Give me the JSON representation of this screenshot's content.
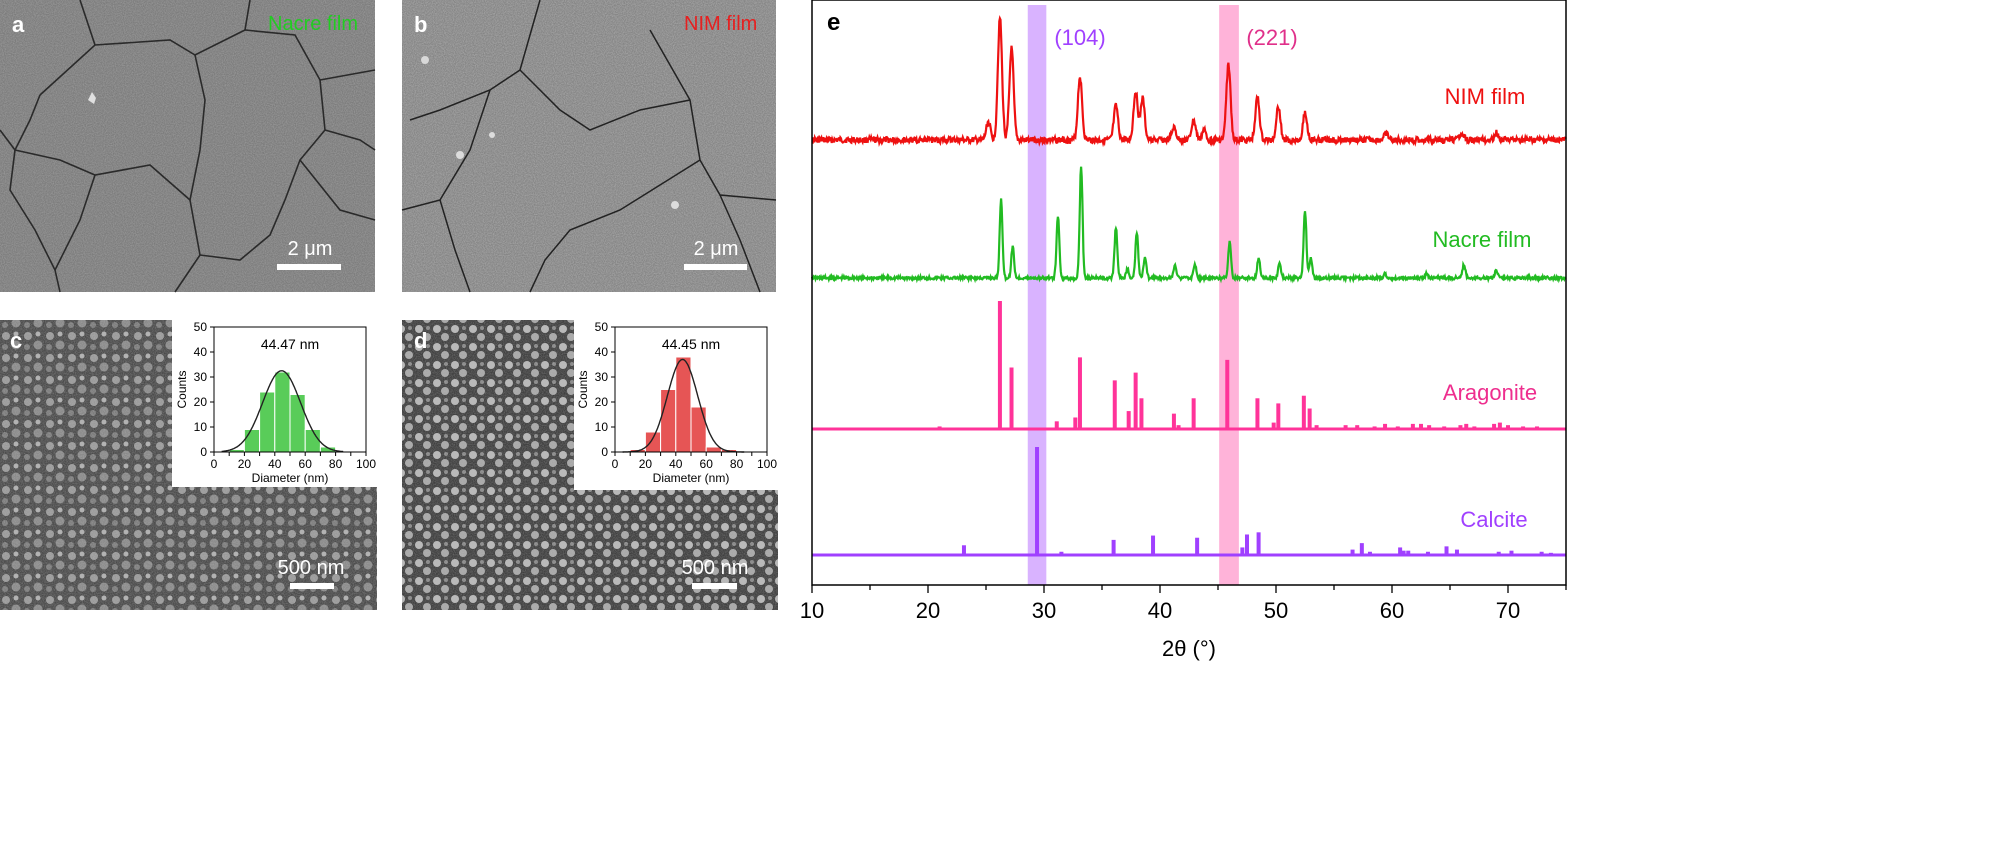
{
  "panels": {
    "a": {
      "letter": "a",
      "title": "Nacre film",
      "scale_label": "2 μm",
      "title_color": "#22cc22"
    },
    "b": {
      "letter": "b",
      "title": "NIM film",
      "scale_label": "2 μm",
      "title_color": "#e62020"
    },
    "c": {
      "letter": "c",
      "scale_label": "500 nm"
    },
    "d": {
      "letter": "d",
      "scale_label": "500 nm"
    },
    "e": {
      "letter": "e"
    }
  },
  "chart_data": [
    {
      "type": "bar",
      "panel": "c",
      "annotation": "44.47 nm",
      "xlabel": "Diameter (nm)",
      "ylabel": "Counts",
      "xlim": [
        0,
        100
      ],
      "ylim": [
        0,
        50
      ],
      "xticks": [
        0,
        10,
        20,
        30,
        40,
        50,
        60,
        70,
        80,
        90,
        100
      ],
      "yticks": [
        0,
        10,
        20,
        30,
        40,
        50
      ],
      "bins": [
        15,
        25,
        35,
        45,
        55,
        65,
        75
      ],
      "values": [
        1,
        9,
        24,
        32,
        23,
        9,
        2
      ],
      "bar_color": "#2fbf2f",
      "fit_curve": "gaussian",
      "fit_peak": 32.5,
      "fit_mean": 44.47,
      "fit_sd": 12.5
    },
    {
      "type": "bar",
      "panel": "d",
      "annotation": "44.45 nm",
      "xlabel": "Diameter (nm)",
      "ylabel": "Counts",
      "xlim": [
        0,
        100
      ],
      "ylim": [
        0,
        50
      ],
      "xticks": [
        0,
        10,
        20,
        30,
        40,
        50,
        60,
        70,
        80,
        90,
        100
      ],
      "yticks": [
        0,
        10,
        20,
        30,
        40,
        50
      ],
      "bins": [
        15,
        25,
        35,
        45,
        55,
        65,
        75
      ],
      "values": [
        1,
        8,
        25,
        38,
        18,
        2,
        1
      ],
      "bar_color": "#e02a2a",
      "fit_curve": "gaussian",
      "fit_peak": 37,
      "fit_mean": 44.45,
      "fit_sd": 10
    },
    {
      "type": "line",
      "panel": "e",
      "xlabel": "2θ (°)",
      "ylabel": "",
      "xlim": [
        10,
        75
      ],
      "xticks": [
        10,
        20,
        30,
        40,
        50,
        60,
        70
      ],
      "highlights": [
        {
          "label": "(104)",
          "from": 28.6,
          "to": 30.2,
          "color": "#cc99ff"
        },
        {
          "label": "(221)",
          "from": 45.1,
          "to": 46.8,
          "color": "#ff99cc"
        }
      ],
      "series": [
        {
          "name": "NIM film",
          "color": "#ee1111",
          "peaks": [
            [
              25.2,
              0.15
            ],
            [
              26.2,
              1.0
            ],
            [
              27.2,
              0.75
            ],
            [
              33.1,
              0.52
            ],
            [
              36.2,
              0.28
            ],
            [
              37.9,
              0.4
            ],
            [
              38.5,
              0.34
            ],
            [
              41.2,
              0.1
            ],
            [
              42.9,
              0.16
            ],
            [
              43.8,
              0.08
            ],
            [
              45.9,
              0.62
            ],
            [
              48.4,
              0.35
            ],
            [
              50.2,
              0.28
            ],
            [
              52.5,
              0.22
            ],
            [
              59.5,
              0.05
            ],
            [
              66.0,
              0.06
            ],
            [
              69.0,
              0.06
            ]
          ]
        },
        {
          "name": "Nacre film",
          "color": "#22bb22",
          "peaks": [
            [
              26.3,
              0.7
            ],
            [
              27.3,
              0.28
            ],
            [
              31.2,
              0.55
            ],
            [
              33.2,
              1.0
            ],
            [
              36.2,
              0.45
            ],
            [
              37.2,
              0.08
            ],
            [
              38.0,
              0.4
            ],
            [
              38.7,
              0.18
            ],
            [
              41.3,
              0.12
            ],
            [
              43.0,
              0.12
            ],
            [
              46.0,
              0.32
            ],
            [
              48.5,
              0.18
            ],
            [
              50.3,
              0.14
            ],
            [
              52.5,
              0.6
            ],
            [
              53.0,
              0.18
            ],
            [
              59.4,
              0.04
            ],
            [
              63.0,
              0.04
            ],
            [
              66.2,
              0.12
            ],
            [
              69.0,
              0.07
            ]
          ]
        },
        {
          "name": "Aragonite",
          "color": "#ff3399",
          "sticks": [
            [
              21.0,
              0.02
            ],
            [
              22.5,
              0.01
            ],
            [
              26.2,
              1.0
            ],
            [
              27.2,
              0.48
            ],
            [
              31.1,
              0.06
            ],
            [
              32.7,
              0.09
            ],
            [
              33.1,
              0.56
            ],
            [
              36.1,
              0.38
            ],
            [
              37.3,
              0.14
            ],
            [
              37.9,
              0.44
            ],
            [
              38.4,
              0.24
            ],
            [
              41.2,
              0.12
            ],
            [
              41.6,
              0.03
            ],
            [
              42.9,
              0.24
            ],
            [
              45.8,
              0.54
            ],
            [
              48.4,
              0.24
            ],
            [
              49.8,
              0.05
            ],
            [
              50.2,
              0.2
            ],
            [
              52.4,
              0.26
            ],
            [
              52.9,
              0.16
            ],
            [
              53.5,
              0.03
            ],
            [
              56.0,
              0.03
            ],
            [
              57.0,
              0.03
            ],
            [
              58.5,
              0.02
            ],
            [
              59.4,
              0.04
            ],
            [
              60.5,
              0.02
            ],
            [
              61.8,
              0.04
            ],
            [
              62.5,
              0.04
            ],
            [
              63.2,
              0.03
            ],
            [
              64.5,
              0.02
            ],
            [
              65.9,
              0.03
            ],
            [
              66.4,
              0.04
            ],
            [
              67.1,
              0.02
            ],
            [
              68.8,
              0.04
            ],
            [
              69.3,
              0.05
            ],
            [
              70.0,
              0.03
            ],
            [
              71.3,
              0.02
            ],
            [
              72.5,
              0.02
            ]
          ]
        },
        {
          "name": "Calcite",
          "color": "#a040ff",
          "sticks": [
            [
              23.1,
              0.09
            ],
            [
              29.4,
              1.0
            ],
            [
              31.5,
              0.03
            ],
            [
              36.0,
              0.14
            ],
            [
              39.4,
              0.18
            ],
            [
              43.2,
              0.16
            ],
            [
              47.1,
              0.07
            ],
            [
              47.5,
              0.19
            ],
            [
              48.5,
              0.21
            ],
            [
              56.6,
              0.05
            ],
            [
              57.4,
              0.11
            ],
            [
              58.1,
              0.03
            ],
            [
              60.7,
              0.07
            ],
            [
              61.0,
              0.04
            ],
            [
              61.4,
              0.04
            ],
            [
              63.1,
              0.03
            ],
            [
              64.7,
              0.08
            ],
            [
              65.6,
              0.05
            ],
            [
              69.2,
              0.03
            ],
            [
              70.3,
              0.04
            ],
            [
              72.9,
              0.03
            ],
            [
              73.7,
              0.02
            ]
          ]
        }
      ]
    }
  ]
}
